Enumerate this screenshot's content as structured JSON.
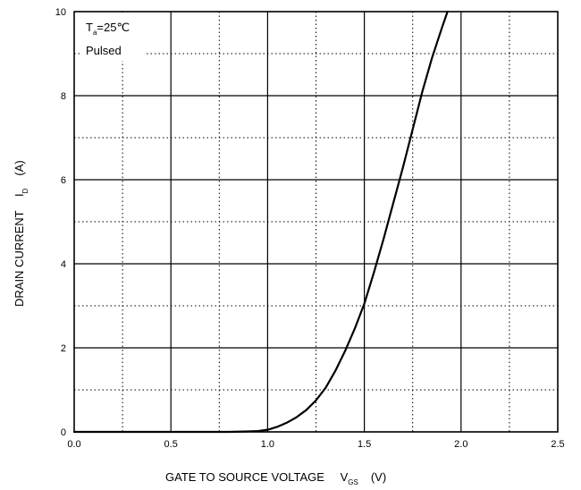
{
  "chart_data": {
    "type": "line",
    "xlabel": "GATE TO SOURCE VOLTAGE",
    "xlabel_symbol": "V",
    "xlabel_symbol_sub": "GS",
    "xlabel_unit": "(V)",
    "ylabel": "DRAIN CURRENT",
    "ylabel_symbol": "I",
    "ylabel_symbol_sub": "D",
    "ylabel_unit": "(A)",
    "xlim": [
      0,
      2.5
    ],
    "ylim": [
      0,
      10
    ],
    "x_ticks": [
      "0.0",
      "0.5",
      "1.0",
      "1.5",
      "2.0",
      "2.5"
    ],
    "y_ticks": [
      "0",
      "2",
      "4",
      "6",
      "8",
      "10"
    ],
    "major_grid": "solid",
    "minor_grid": "dotted",
    "annotation_line1_symbol": "T",
    "annotation_line1_sub": "a",
    "annotation_line1_rest": "=25℃",
    "annotation_line2": "Pulsed",
    "series": [
      {
        "color": "#000000",
        "x": [
          0.0,
          0.8,
          0.9,
          0.95,
          1.0,
          1.05,
          1.1,
          1.15,
          1.2,
          1.25,
          1.3,
          1.35,
          1.4,
          1.45,
          1.5,
          1.55,
          1.6,
          1.65,
          1.7,
          1.75,
          1.8,
          1.85,
          1.9,
          1.93
        ],
        "y": [
          0.0,
          0.0,
          0.01,
          0.02,
          0.05,
          0.12,
          0.22,
          0.35,
          0.52,
          0.75,
          1.05,
          1.45,
          1.92,
          2.45,
          3.05,
          3.8,
          4.6,
          5.45,
          6.3,
          7.2,
          8.1,
          8.9,
          9.6,
          10.0
        ]
      }
    ]
  }
}
